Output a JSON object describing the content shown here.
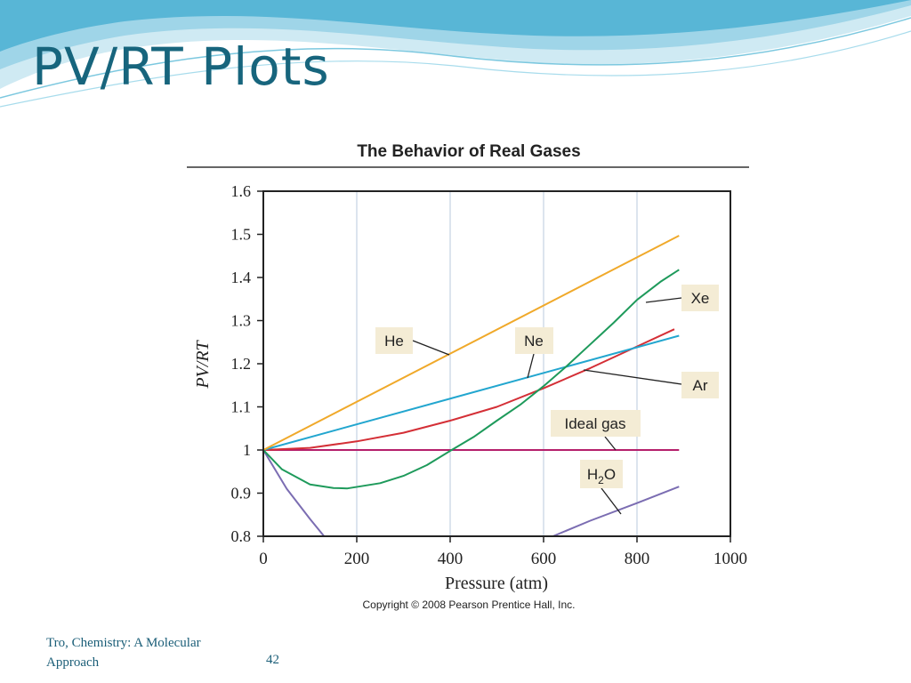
{
  "slide": {
    "title": "PV/RT Plots",
    "footer_source": "Tro, Chemistry: A Molecular Approach",
    "page_number": "42"
  },
  "colors": {
    "title": "#17657d",
    "He": "#f0a92a",
    "Ne": "#22a6cf",
    "Ar": "#d42f36",
    "Xe": "#1e9a5b",
    "Ideal gas": "#b51f6b",
    "H2O": "#7b6db2",
    "grid": "#b9c8dc",
    "label_box": "#f4ecd5"
  },
  "chart_data": {
    "type": "line",
    "title": "The Behavior of Real Gases",
    "xlabel": "Pressure (atm)",
    "ylabel": "PV/RT",
    "copyright": "Copyright © 2008 Pearson Prentice Hall, Inc.",
    "xlim": [
      0,
      1000
    ],
    "ylim": [
      0.8,
      1.6
    ],
    "xticks": [
      0,
      200,
      400,
      600,
      800,
      1000
    ],
    "xtick_labels": [
      "0",
      "200",
      "400",
      "600",
      "800",
      "1000"
    ],
    "yticks": [
      0.8,
      0.9,
      1.0,
      1.1,
      1.2,
      1.3,
      1.4,
      1.5,
      1.6
    ],
    "ytick_labels": [
      "0.8",
      "0.9",
      "1",
      "1.1",
      "1.2",
      "1.3",
      "1.4",
      "1.5",
      "1.6"
    ],
    "grid": true,
    "series": [
      {
        "name": "He",
        "label": "He",
        "x": [
          0,
          890
        ],
        "y": [
          1.0,
          1.497
        ]
      },
      {
        "name": "Ne",
        "label": "Ne",
        "x": [
          0,
          890
        ],
        "y": [
          1.0,
          1.265
        ]
      },
      {
        "name": "Ar",
        "label": "Ar",
        "x": [
          0,
          100,
          200,
          300,
          400,
          500,
          600,
          700,
          800,
          880
        ],
        "y": [
          1.0,
          1.005,
          1.02,
          1.04,
          1.068,
          1.1,
          1.143,
          1.19,
          1.24,
          1.28
        ]
      },
      {
        "name": "Xe",
        "label": "Xe",
        "x": [
          0,
          40,
          100,
          150,
          180,
          250,
          300,
          350,
          400,
          450,
          500,
          550,
          600,
          650,
          700,
          750,
          800,
          850,
          890
        ],
        "y": [
          1.0,
          0.955,
          0.92,
          0.912,
          0.911,
          0.923,
          0.94,
          0.965,
          0.998,
          1.03,
          1.068,
          1.105,
          1.148,
          1.195,
          1.245,
          1.295,
          1.348,
          1.39,
          1.418
        ]
      },
      {
        "name": "Ideal gas",
        "label": "Ideal gas",
        "x": [
          0,
          890
        ],
        "y": [
          1.0,
          1.0
        ]
      },
      {
        "name": "H2O (low pressure)",
        "x": [
          0,
          50,
          100,
          130
        ],
        "y": [
          1.0,
          0.91,
          0.84,
          0.8
        ]
      },
      {
        "name": "H2O (high pressure)",
        "label_main": "H",
        "label_sub": "2",
        "label_end": "O",
        "x": [
          620,
          700,
          800,
          890
        ],
        "y": [
          0.8,
          0.836,
          0.877,
          0.915
        ]
      }
    ]
  }
}
